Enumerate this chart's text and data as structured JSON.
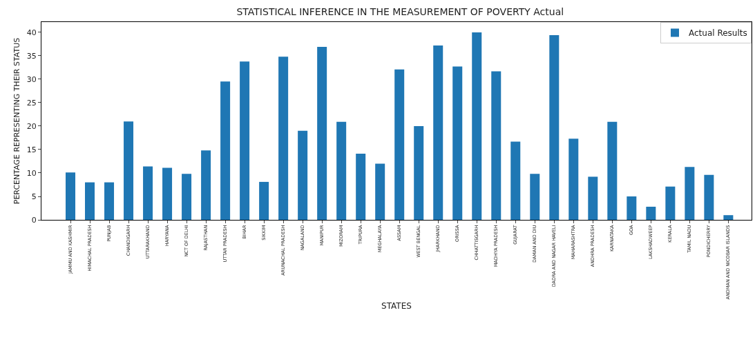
{
  "chart_data": {
    "type": "bar",
    "title": "STATISTICAL INFERENCE IN THE MEASUREMENT OF POVERTY Actual",
    "xlabel": "STATES",
    "ylabel": "PERCENTAGE REPRESENTING THEIR STATUS",
    "categories": [
      "JAMMU AND KASHMIR",
      "HIMACHAL PRADESH",
      "PUNJAB",
      "CHANDIGARH",
      "UTTARAKHAND",
      "HARYANA",
      "NCT OF DELHI",
      "RAJASTHAN",
      "UTTAR PRADESH",
      "BIHAR",
      "SIKKIM",
      "ARUNACHAL PRADESH",
      "NAGALAND",
      "MANIPUR",
      "MIZORAM",
      "TRIPURA",
      "MEGHALAYA",
      "ASSAM",
      "WEST BENGAL",
      "JHARKHAND",
      "ORISSA",
      "CHHATTISGARH",
      "MADHYA PRADESH",
      "GUJARAT",
      "DAMAN AND DIU",
      "DADRA AND NAGAR HAVELI",
      "MAHARASHTRA",
      "ANDHRA PRADESH",
      "KARNATAKA",
      "GOA",
      "LAKSHADWEEP",
      "KERALA",
      "TAMIL NADU",
      "PONDICHERRY",
      "ANDMAN AND NICOBAR ISLANDS"
    ],
    "series": [
      {
        "name": "Actual Results",
        "color": "#1f77b4",
        "values": [
          10.1,
          8.0,
          8.0,
          21.0,
          11.4,
          11.1,
          9.8,
          14.8,
          29.5,
          33.8,
          8.1,
          34.8,
          19.0,
          36.9,
          20.9,
          14.1,
          12.0,
          32.1,
          20.0,
          37.2,
          32.7,
          40.0,
          31.7,
          16.7,
          9.8,
          39.4,
          17.3,
          9.2,
          20.9,
          5.0,
          2.8,
          7.1,
          11.3,
          9.6,
          1.0
        ]
      }
    ],
    "ylim": [
      0,
      42.2
    ],
    "yticks": [
      0,
      5,
      10,
      15,
      20,
      25,
      30,
      35,
      40
    ],
    "grid": false,
    "legend": "top right"
  }
}
